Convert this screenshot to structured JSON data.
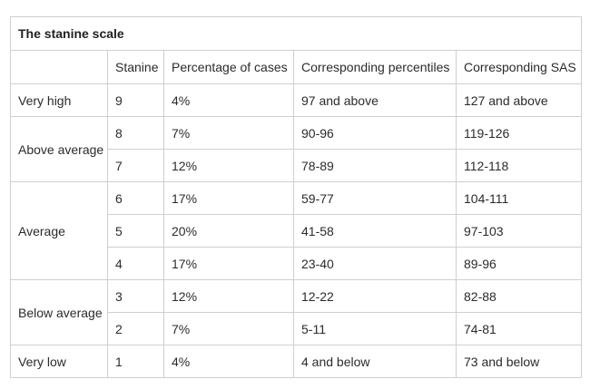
{
  "table": {
    "title": "The stanine scale",
    "headers": {
      "stanine": "Stanine",
      "percentage": "Percentage of cases",
      "percentiles": "Corresponding percentiles",
      "sas": "Corresponding SAS"
    },
    "groups": {
      "very_high": "Very high",
      "above_average": "Above average",
      "average": "Average",
      "below_average": "Below average",
      "very_low": "Very low"
    },
    "rows": [
      {
        "stanine": "9",
        "percentage": "4%",
        "percentiles": "97 and above",
        "sas": "127 and above"
      },
      {
        "stanine": "8",
        "percentage": "7%",
        "percentiles": "90-96",
        "sas": "119-126"
      },
      {
        "stanine": "7",
        "percentage": "12%",
        "percentiles": "78-89",
        "sas": "112-118"
      },
      {
        "stanine": "6",
        "percentage": "17%",
        "percentiles": "59-77",
        "sas": "104-111"
      },
      {
        "stanine": "5",
        "percentage": "20%",
        "percentiles": "41-58",
        "sas": "97-103"
      },
      {
        "stanine": "4",
        "percentage": "17%",
        "percentiles": "23-40",
        "sas": "89-96"
      },
      {
        "stanine": "3",
        "percentage": "12%",
        "percentiles": "12-22",
        "sas": "82-88"
      },
      {
        "stanine": "2",
        "percentage": "7%",
        "percentiles": "5-11",
        "sas": "74-81"
      },
      {
        "stanine": "1",
        "percentage": "4%",
        "percentiles": "4 and below",
        "sas": "73 and below"
      }
    ]
  }
}
